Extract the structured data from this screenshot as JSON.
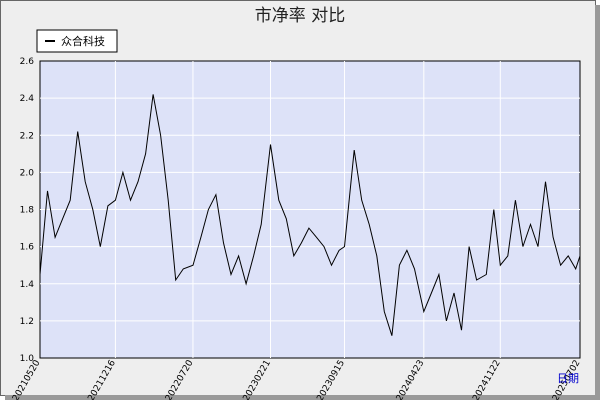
{
  "chart_data": {
    "type": "line",
    "title": "市净率  对比",
    "legend": [
      "众合科技"
    ],
    "legend_position": "top-left",
    "xlabel": "日期",
    "ylabel": "",
    "ylim": [
      1.0,
      2.6
    ],
    "y_ticks": [
      1.0,
      1.2,
      1.4,
      1.6,
      1.8,
      2.0,
      2.2,
      2.4,
      2.6
    ],
    "x_ticks": [
      "20210520",
      "20211216",
      "20220720",
      "20230221",
      "20230915",
      "20240423",
      "20241122",
      "20250702"
    ],
    "grid": true,
    "colors": {
      "plot_bg": "#dde2f8",
      "frame_bg": "#eeeeee",
      "line": "#000000",
      "grid": "#ffffff",
      "xlabel": "#0000cc"
    },
    "series": [
      {
        "name": "众合科技",
        "x": [
          "20210520",
          "20210610",
          "20210701",
          "20210722",
          "20210812",
          "20210902",
          "20210923",
          "20211014",
          "20211104",
          "20211125",
          "20211216",
          "20220106",
          "20220127",
          "20220217",
          "20220310",
          "20220331",
          "20220421",
          "20220512",
          "20220602",
          "20220623",
          "20220720",
          "20220811",
          "20220901",
          "20220922",
          "20221013",
          "20221103",
          "20221124",
          "20221215",
          "20230105",
          "20230126",
          "20230221",
          "20230316",
          "20230406",
          "20230427",
          "20230518",
          "20230608",
          "20230629",
          "20230720",
          "20230810",
          "20230831",
          "20230915",
          "20231012",
          "20231102",
          "20231123",
          "20231214",
          "20240104",
          "20240125",
          "20240215",
          "20240307",
          "20240328",
          "20240423",
          "20240514",
          "20240604",
          "20240625",
          "20240716",
          "20240806",
          "20240827",
          "20240917",
          "20241014",
          "20241104",
          "20241122",
          "20241213",
          "20250103",
          "20250124",
          "20250214",
          "20250307",
          "20250328",
          "20250418",
          "20250509",
          "20250530",
          "20250620",
          "20250702"
        ],
        "values": [
          1.45,
          1.9,
          1.65,
          1.75,
          1.85,
          2.22,
          1.95,
          1.8,
          1.6,
          1.82,
          1.85,
          2.0,
          1.85,
          1.95,
          2.1,
          2.42,
          2.2,
          1.85,
          1.42,
          1.48,
          1.5,
          1.65,
          1.8,
          1.88,
          1.62,
          1.45,
          1.55,
          1.4,
          1.55,
          1.72,
          2.15,
          1.85,
          1.75,
          1.55,
          1.62,
          1.7,
          1.65,
          1.6,
          1.5,
          1.58,
          1.6,
          2.12,
          1.85,
          1.72,
          1.55,
          1.25,
          1.12,
          1.5,
          1.58,
          1.48,
          1.25,
          1.35,
          1.45,
          1.2,
          1.35,
          1.15,
          1.6,
          1.42,
          1.45,
          1.8,
          1.5,
          1.55,
          1.85,
          1.6,
          1.72,
          1.6,
          1.95,
          1.65,
          1.5,
          1.55,
          1.48,
          1.55
        ]
      }
    ]
  }
}
